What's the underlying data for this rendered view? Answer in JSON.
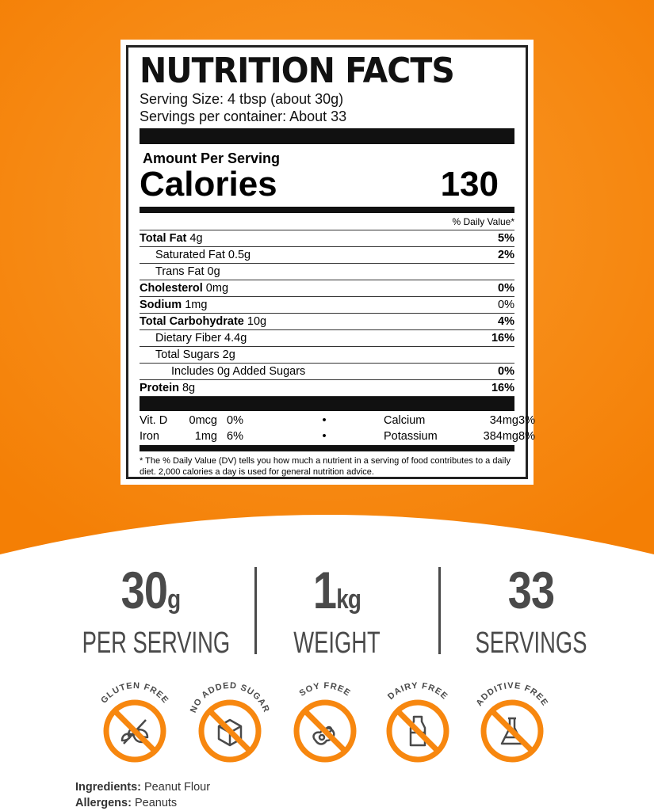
{
  "colors": {
    "orange": "#F7870F",
    "gray": "#4a4a4a"
  },
  "label": {
    "title": "NUTRITION FACTS",
    "serving_size": "Serving Size: 4 tbsp (about 30g)",
    "servings_per_container": "Servings per container: About 33",
    "amount_per_serving": "Amount Per Serving",
    "calories_label": "Calories",
    "calories": "130",
    "dv_header": "% Daily Value*",
    "rows": [
      {
        "name": "Total Fat",
        "amount": "4g",
        "dv": "5%",
        "bold": true,
        "indent": 0
      },
      {
        "name": "Saturated Fat",
        "amount": "0.5g",
        "dv": "2%",
        "bold": false,
        "indent": 1
      },
      {
        "name": "Trans Fat",
        "amount": "0g",
        "dv": "",
        "bold": false,
        "indent": 1
      },
      {
        "name": "Cholesterol",
        "amount": "0mg",
        "dv": "0%",
        "bold": true,
        "indent": 0
      },
      {
        "name": "Sodium",
        "amount": "1mg",
        "dv": "0%",
        "bold": true,
        "indent": 0
      },
      {
        "name": "Total Carbohydrate",
        "amount": "10g",
        "dv": "4%",
        "bold": true,
        "indent": 0
      },
      {
        "name": "Dietary Fiber",
        "amount": "4.4g",
        "dv": "16%",
        "bold": false,
        "indent": 1
      },
      {
        "name": "Total Sugars",
        "amount": "2g",
        "dv": "",
        "bold": false,
        "indent": 1
      },
      {
        "name": "Includes 0g Added Sugars",
        "amount": "",
        "dv": "0%",
        "bold": false,
        "indent": 2
      },
      {
        "name": "Protein",
        "amount": "8g",
        "dv": "16%",
        "bold": true,
        "indent": 0
      }
    ],
    "vitamins": [
      [
        "Vit. D",
        "0mcg",
        "0%",
        "•",
        "Calcium",
        "34mg",
        "3%"
      ],
      [
        "Iron",
        "1mg",
        "6%",
        "•",
        "Potassium",
        "384mg",
        "8%"
      ]
    ],
    "footnote": "* The % Daily Value (DV) tells you how much a nutrient in a serving of food contributes to a daily diet. 2,000 calories a day is used for general nutrition advice."
  },
  "stats": [
    {
      "value": "30",
      "unit": "g",
      "label": "PER SERVING"
    },
    {
      "value": "1",
      "unit": "kg",
      "label": "WEIGHT"
    },
    {
      "value": "33",
      "unit": "",
      "label": "SERVINGS"
    }
  ],
  "badges": [
    {
      "text": "GLUTEN FREE",
      "icon": "wheat-icon"
    },
    {
      "text": "NO ADDED SUGAR",
      "icon": "sugar-cube-icon"
    },
    {
      "text": "SOY FREE",
      "icon": "soybean-icon"
    },
    {
      "text": "DAIRY FREE",
      "icon": "milk-bottle-icon"
    },
    {
      "text": "ADDITIVE FREE",
      "icon": "flask-icon"
    }
  ],
  "ingredients": {
    "label": "Ingredients:",
    "value": "Peanut Flour"
  },
  "allergens": {
    "label": "Allergens:",
    "value": "Peanuts"
  }
}
